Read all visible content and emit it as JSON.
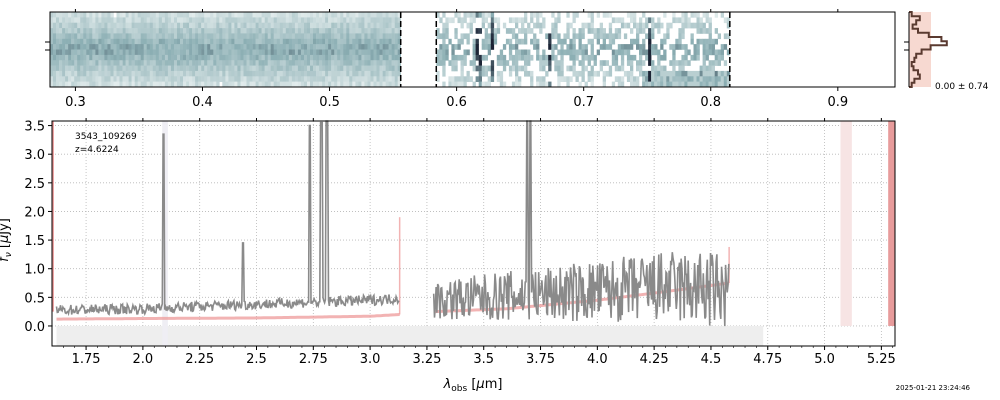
{
  "figure": {
    "timestamp": "2025-01-21 23:24:46"
  },
  "chart_data": [
    {
      "type": "heatmap",
      "xlim": [
        0.28,
        0.945
      ],
      "ticks": [
        0.3,
        0.4,
        0.5,
        0.6,
        0.7,
        0.8,
        0.9
      ],
      "tick_labels": [
        "0.3",
        "0.4",
        "0.5",
        "0.6",
        "0.7",
        "0.8",
        "0.9"
      ],
      "coverage": [
        [
          0.28,
          0.556
        ],
        [
          0.584,
          0.815
        ]
      ],
      "colors": {
        "low": "#e8f1f1",
        "mid": "#8fb1b6",
        "high": "#1c2435"
      }
    },
    {
      "type": "area",
      "annotation": "0.00 ± 0.74",
      "colors": {
        "hist": "#5a3a30",
        "fill": "#f6d5cc"
      }
    },
    {
      "type": "line",
      "label": "3543_109269",
      "redshift": "z=4.6224",
      "xlabel": "λobs [μm]",
      "ylabel": "fν [μJy]",
      "xlim": [
        1.6,
        5.31
      ],
      "ylim": [
        -0.35,
        3.58
      ],
      "xticks": [
        1.75,
        2.0,
        2.25,
        2.5,
        2.75,
        3.0,
        3.25,
        3.5,
        3.75,
        4.0,
        4.25,
        4.5,
        4.75,
        5.0,
        5.25
      ],
      "xtick_labels": [
        "1.75",
        "2.0",
        "2.25",
        "2.5",
        "2.75",
        "3.0",
        "3.25",
        "3.5",
        "3.75",
        "4.0",
        "4.25",
        "4.5",
        "4.75",
        "5.0",
        "5.25"
      ],
      "yticks": [
        0.0,
        0.5,
        1.0,
        1.5,
        2.0,
        2.5,
        3.0,
        3.5
      ],
      "ytick_labels": [
        "0.0",
        "0.5",
        "1.0",
        "1.5",
        "2.0",
        "2.5",
        "3.0",
        "3.5"
      ],
      "grid": true,
      "segments": [
        {
          "name": "",
          "x_range": [
            1.62,
            3.13
          ],
          "continuum": [
            [
              1.62,
              0.28
            ],
            [
              2.0,
              0.3
            ],
            [
              2.5,
              0.38
            ],
            [
              3.0,
              0.45
            ],
            [
              3.13,
              0.48
            ]
          ],
          "model": [
            [
              1.62,
              0.12
            ],
            [
              2.0,
              0.13
            ],
            [
              2.5,
              0.14
            ],
            [
              3.0,
              0.17
            ],
            [
              3.13,
              0.2
            ]
          ]
        },
        {
          "name": "",
          "x_range": [
            3.28,
            4.58
          ],
          "continuum": [
            [
              3.28,
              0.45
            ],
            [
              3.5,
              0.5
            ],
            [
              4.0,
              0.6
            ],
            [
              4.3,
              0.68
            ],
            [
              4.58,
              0.6
            ]
          ],
          "model": [
            [
              3.28,
              0.25
            ],
            [
              3.6,
              0.3
            ],
            [
              4.0,
              0.45
            ],
            [
              4.3,
              0.6
            ],
            [
              4.58,
              0.75
            ]
          ]
        }
      ],
      "emission_lines": [
        {
          "x": 2.09,
          "peak": 3.35
        },
        {
          "x": 2.44,
          "peak": 1.45
        },
        {
          "x": 2.735,
          "peak": 3.5
        },
        {
          "x": 2.785,
          "peak": 3.55
        },
        {
          "x": 2.81,
          "peak": 3.58
        },
        {
          "x": 3.69,
          "peak": 3.58
        },
        {
          "x": 3.705,
          "peak": 3.58
        }
      ],
      "colors": {
        "data": "#8a8a8a",
        "model": "#ee9a9a",
        "band": "#f7e4e4",
        "gap_fill": "#eeeeee"
      }
    }
  ]
}
